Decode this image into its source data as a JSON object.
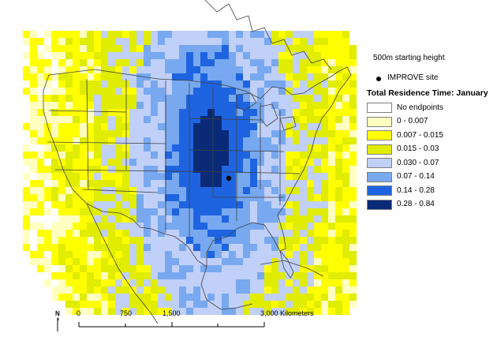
{
  "legend": {
    "starting_height": "500m starting height",
    "site_label": "IMPROVE site",
    "title": "Total Residence Time: January",
    "classes": [
      {
        "label": "No endpoints",
        "color": "#ffffff"
      },
      {
        "label": "0 - 0.007",
        "color": "#ffffc0"
      },
      {
        "label": "0.007 - 0.015",
        "color": "#ffff00"
      },
      {
        "label": "0.015 - 0.03",
        "color": "#e0ec00"
      },
      {
        "label": "0.030 - 0.07",
        "color": "#c0d0f8"
      },
      {
        "label": "0.07 - 0.14",
        "color": "#78a8f0"
      },
      {
        "label": "0.14 - 0.28",
        "color": "#1e64e0"
      },
      {
        "label": "0.28 - 0.84",
        "color": "#0a2a78"
      }
    ]
  },
  "scale": {
    "north": "N",
    "labels": [
      "0",
      "750",
      "1,500",
      "3,000 Kilometers"
    ]
  },
  "colors": {
    "boundary": "#404040",
    "site": "#000000"
  }
}
